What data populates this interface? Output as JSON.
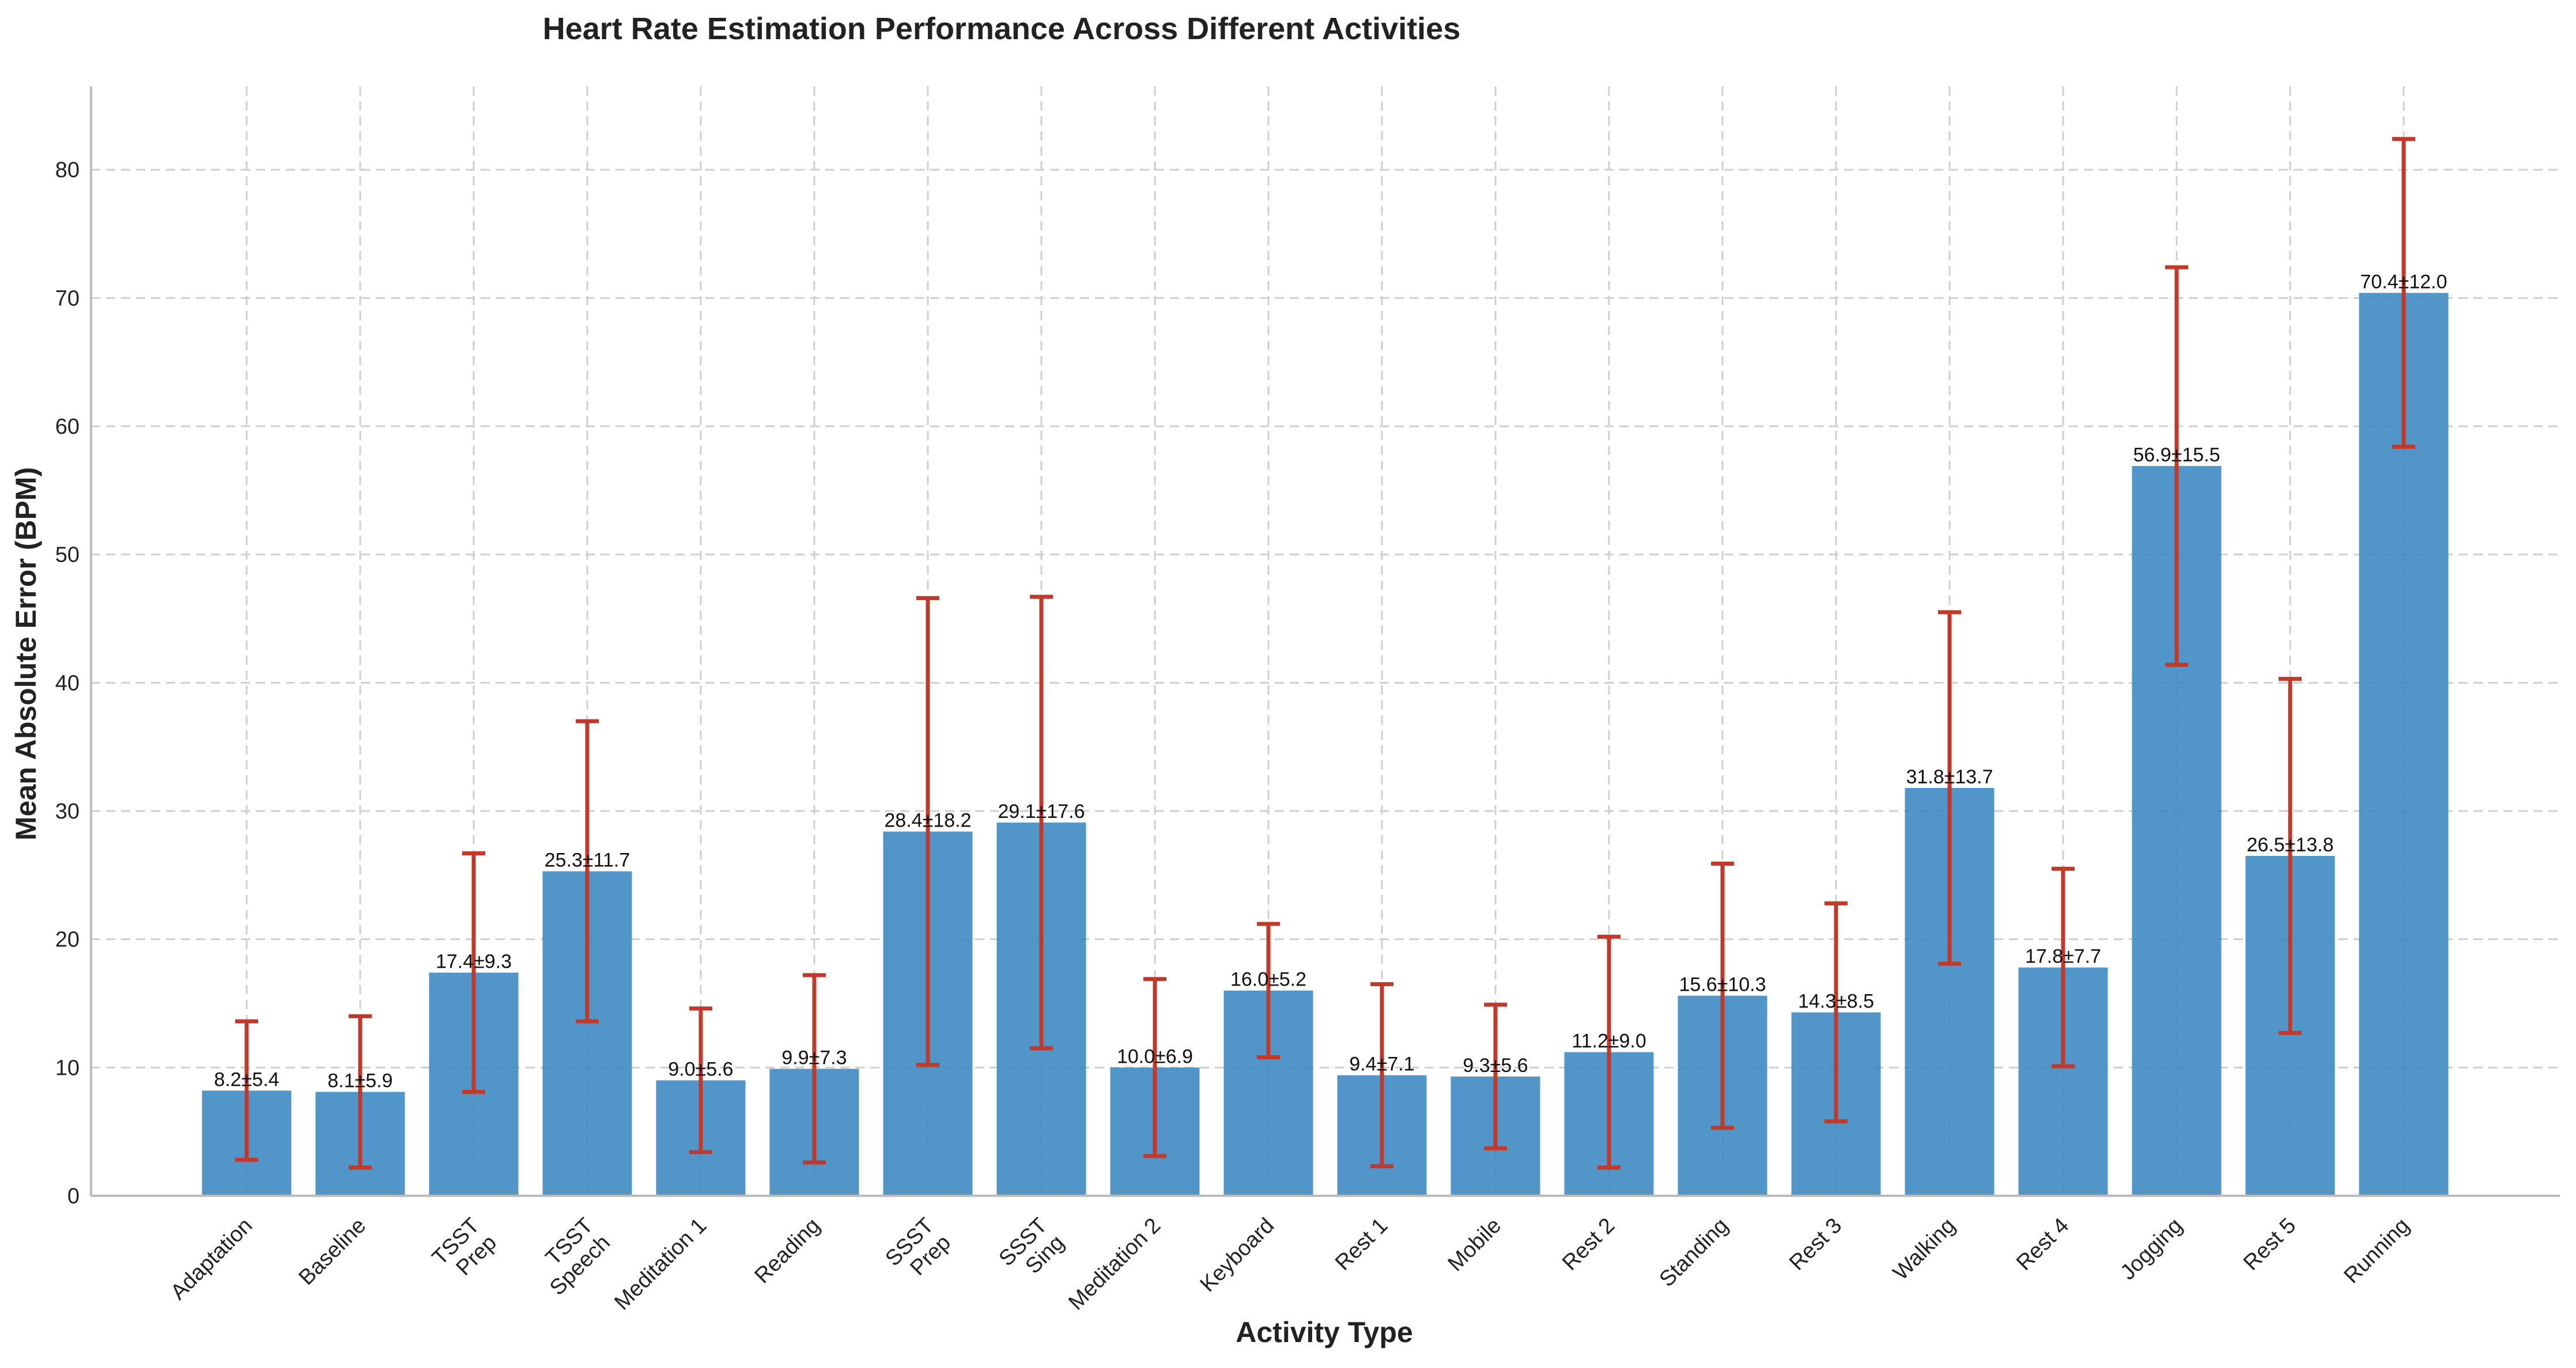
{
  "chart_data": {
    "type": "bar",
    "title": "Heart Rate Estimation Performance Across Different Activities",
    "xlabel": "Activity Type",
    "ylabel": "Mean Absolute Error (BPM)",
    "ylim": [
      0,
      86.5
    ],
    "yticks": [
      0,
      10,
      20,
      30,
      40,
      50,
      60,
      70,
      80
    ],
    "grid": true,
    "categories": [
      [
        "Adaptation"
      ],
      [
        "Baseline"
      ],
      [
        "TSST",
        "Prep"
      ],
      [
        "TSST",
        "Speech"
      ],
      [
        "Meditation 1"
      ],
      [
        "Reading"
      ],
      [
        "SSST",
        "Prep"
      ],
      [
        "SSST",
        "Sing"
      ],
      [
        "Meditation 2"
      ],
      [
        "Keyboard"
      ],
      [
        "Rest 1"
      ],
      [
        "Mobile"
      ],
      [
        "Rest 2"
      ],
      [
        "Standing"
      ],
      [
        "Rest 3"
      ],
      [
        "Walking"
      ],
      [
        "Rest 4"
      ],
      [
        "Jogging"
      ],
      [
        "Rest 5"
      ],
      [
        "Running"
      ]
    ],
    "values": [
      8.2,
      8.1,
      17.4,
      25.3,
      9.0,
      9.9,
      28.4,
      29.1,
      10.0,
      16.0,
      9.4,
      9.3,
      11.2,
      15.6,
      14.3,
      31.8,
      17.8,
      56.9,
      26.5,
      70.4
    ],
    "errors": [
      5.4,
      5.9,
      9.3,
      11.7,
      5.6,
      7.3,
      18.2,
      17.6,
      6.9,
      5.2,
      7.1,
      5.6,
      9.0,
      10.3,
      8.5,
      13.7,
      7.7,
      15.5,
      13.8,
      12.0
    ],
    "data_labels": [
      "8.2±5.4",
      "8.1±5.9",
      "17.4±9.3",
      "25.3±11.7",
      "9.0±5.6",
      "9.9±7.3",
      "28.4±18.2",
      "29.1±17.6",
      "10.0±6.9",
      "16.0±5.2",
      "9.4±7.1",
      "9.3±5.6",
      "11.2±9.0",
      "15.6±10.3",
      "14.3±8.5",
      "31.8±13.7",
      "17.8±7.7",
      "56.9±15.5",
      "26.5±13.8",
      "70.4±12.0"
    ],
    "colors": {
      "bar": "#3a86c2",
      "error": "#c0392b",
      "grid": "#cfcfcf"
    }
  }
}
